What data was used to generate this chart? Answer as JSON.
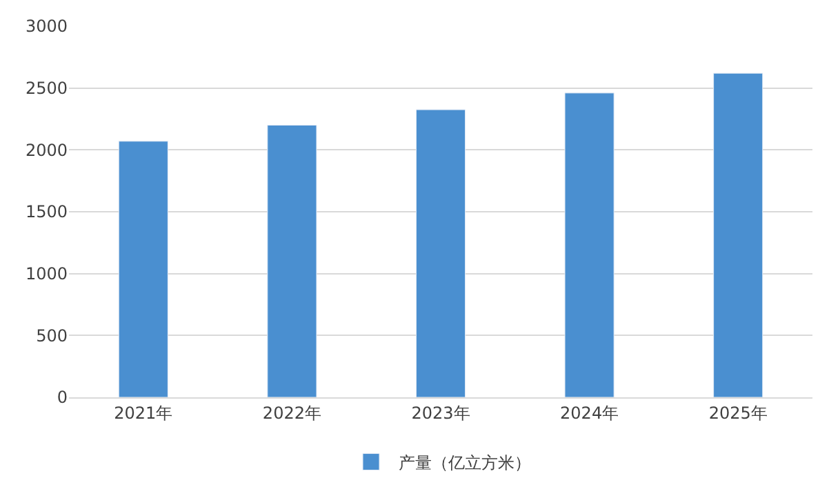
{
  "chart_data": {
    "type": "bar",
    "categories": [
      "2021年",
      "2022年",
      "2023年",
      "2024年",
      "2025年"
    ],
    "series": [
      {
        "name": "产量（亿立方米）",
        "color": "#4a8fd0",
        "values": [
          2070,
          2200,
          2325,
          2460,
          2620
        ]
      }
    ],
    "ylim": [
      0,
      3000
    ],
    "yticks": [
      0,
      500,
      1000,
      1500,
      2000,
      2500,
      3000
    ],
    "grid": "y",
    "legend": "bottom"
  }
}
